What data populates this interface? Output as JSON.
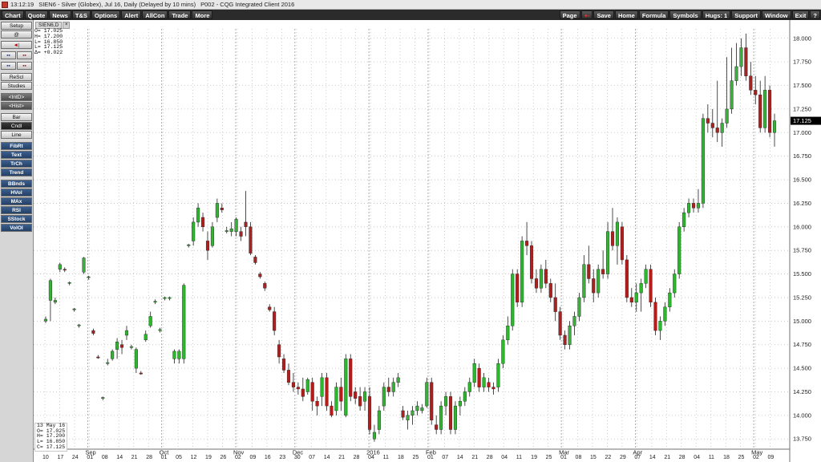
{
  "titlebar": {
    "time": "13:12:19",
    "caption": "SIEN6 - Silver (Globex), Jul 16, Daily (Delayed by 10 mins)",
    "page": "P002 - CQG Integrated Client 2016"
  },
  "menu": {
    "left": [
      "Chart",
      "Quote",
      "News",
      "T&S",
      "Options",
      "Alert",
      "AllCon",
      "Trade",
      "More"
    ],
    "right": [
      "Page",
      "+-",
      "Save",
      "Home",
      "Formula",
      "Symbols",
      "Hugs: 1",
      "Support",
      "Window",
      "Exit",
      "?"
    ]
  },
  "sidebar": {
    "top": [
      "Setup",
      "@",
      "◄|",
      "▪▪",
      "▪▪",
      "ReScl",
      "Studies",
      "<IntD>",
      "<Hist>",
      "Bar",
      "Cndl",
      "Line"
    ],
    "studies": [
      "FibRt",
      "Text",
      "TrCh",
      "Trend",
      "BBnds",
      "HVol",
      "MAx",
      "RSI",
      "SStock",
      "VolOI"
    ]
  },
  "tab": {
    "label": "SIEN6,D",
    "close": "×"
  },
  "ohlc_top": {
    "o": "O= 17.025",
    "h": "H= 17.200",
    "l": "L= 16.850",
    "c": "L= 17.125",
    "d": "Δ= +0.022"
  },
  "ohlc_bottom": {
    "date": "13 May 16",
    "o": "O= 17.025",
    "h": "H= 17.200",
    "l": "L= 16.850",
    "c": "C= 17.125"
  },
  "colors": {
    "up": "#2fb52f",
    "down": "#b51d1d",
    "grid": "#c0c0c0",
    "last_price_bg": "#000000"
  },
  "chart_data": {
    "type": "candlestick",
    "symbol": "SIEN6",
    "ylim": [
      13.65,
      18.1
    ],
    "y_ticks": [
      "13.750",
      "14.000",
      "14.250",
      "14.500",
      "14.750",
      "15.000",
      "15.250",
      "15.500",
      "15.750",
      "16.000",
      "16.250",
      "16.500",
      "16.750",
      "17.000",
      "17.250",
      "17.500",
      "17.750",
      "18.000"
    ],
    "last_price": "17.125",
    "x_labels": [
      "10",
      "17",
      "24",
      "01",
      "08",
      "14",
      "21",
      "28",
      "01",
      "05",
      "12",
      "19",
      "26",
      "02",
      "09",
      "16",
      "23",
      "30",
      "07",
      "14",
      "21",
      "28",
      "04",
      "11",
      "18",
      "25",
      "01",
      "07",
      "14",
      "21",
      "28",
      "04",
      "11",
      "19",
      "25",
      "01",
      "08",
      "15",
      "22",
      "29",
      "07",
      "14",
      "21",
      "28",
      "04",
      "11",
      "18",
      "25",
      "02",
      "09"
    ],
    "months": [
      {
        "label": "Sep",
        "at": 3
      },
      {
        "label": "Oct",
        "at": 8
      },
      {
        "label": "Nov",
        "at": 13
      },
      {
        "label": "Dec",
        "at": 17
      },
      {
        "label": "2016",
        "at": 22
      },
      {
        "label": "Feb",
        "at": 26
      },
      {
        "label": "Mar",
        "at": 35
      },
      {
        "label": "Apr",
        "at": 40
      },
      {
        "label": "May",
        "at": 48
      }
    ],
    "candles": [
      [
        15.0,
        15.05,
        14.98,
        15.02
      ],
      [
        15.22,
        15.45,
        15.0,
        15.43
      ],
      [
        15.2,
        15.25,
        15.18,
        15.22
      ],
      [
        15.55,
        15.62,
        15.52,
        15.6
      ],
      [
        15.55,
        15.57,
        15.52,
        15.54
      ],
      [
        15.4,
        15.42,
        15.38,
        15.41
      ],
      [
        15.12,
        15.14,
        15.1,
        15.13
      ],
      [
        14.95,
        14.97,
        14.93,
        14.96
      ],
      [
        15.52,
        15.68,
        15.5,
        15.67
      ],
      [
        15.46,
        15.48,
        15.44,
        15.47
      ],
      [
        14.9,
        14.92,
        14.85,
        14.87
      ],
      [
        14.62,
        14.64,
        14.6,
        14.61
      ],
      [
        14.18,
        14.2,
        14.16,
        14.19
      ],
      [
        14.55,
        14.6,
        14.53,
        14.56
      ],
      [
        14.6,
        14.7,
        14.58,
        14.68
      ],
      [
        14.7,
        14.82,
        14.6,
        14.78
      ],
      [
        14.75,
        14.8,
        14.65,
        14.72
      ],
      [
        14.85,
        14.95,
        14.8,
        14.9
      ],
      [
        14.72,
        14.75,
        14.7,
        14.73
      ],
      [
        14.5,
        14.72,
        14.45,
        14.7
      ],
      [
        14.45,
        14.47,
        14.43,
        14.44
      ],
      [
        14.8,
        14.9,
        14.78,
        14.86
      ],
      [
        14.95,
        15.1,
        14.93,
        15.05
      ],
      [
        15.2,
        15.23,
        15.18,
        15.21
      ],
      [
        14.9,
        14.93,
        14.88,
        14.91
      ],
      [
        15.24,
        15.26,
        15.22,
        15.25
      ],
      [
        15.24,
        15.26,
        15.22,
        15.25
      ],
      [
        14.6,
        14.7,
        14.55,
        14.68
      ],
      [
        14.6,
        14.7,
        14.55,
        14.68
      ],
      [
        14.6,
        15.4,
        14.55,
        15.38
      ],
      [
        15.8,
        15.82,
        15.78,
        15.81
      ],
      [
        15.85,
        16.1,
        15.8,
        16.05
      ],
      [
        16.05,
        16.25,
        16.0,
        16.2
      ],
      [
        16.1,
        16.15,
        15.95,
        16.0
      ],
      [
        15.85,
        15.95,
        15.65,
        15.75
      ],
      [
        15.8,
        16.05,
        15.78,
        16.0
      ],
      [
        16.1,
        16.3,
        16.05,
        16.25
      ],
      [
        16.2,
        16.25,
        16.15,
        16.18
      ],
      [
        15.95,
        16.0,
        15.93,
        15.96
      ],
      [
        15.95,
        16.05,
        15.9,
        15.98
      ],
      [
        15.95,
        16.1,
        15.9,
        16.08
      ],
      [
        15.95,
        16.0,
        15.85,
        15.9
      ],
      [
        16.05,
        16.38,
        15.9,
        16.0
      ],
      [
        16.0,
        16.05,
        15.7,
        15.72
      ],
      [
        15.68,
        15.7,
        15.6,
        15.62
      ],
      [
        15.5,
        15.52,
        15.45,
        15.47
      ],
      [
        15.4,
        15.42,
        15.32,
        15.35
      ],
      [
        15.15,
        15.18,
        15.1,
        15.12
      ],
      [
        15.1,
        15.15,
        14.85,
        14.9
      ],
      [
        14.75,
        14.8,
        14.55,
        14.62
      ],
      [
        14.6,
        14.65,
        14.45,
        14.48
      ],
      [
        14.48,
        14.55,
        14.32,
        14.35
      ],
      [
        14.35,
        14.45,
        14.25,
        14.3
      ],
      [
        14.3,
        14.35,
        14.22,
        14.28
      ],
      [
        14.28,
        14.4,
        14.15,
        14.2
      ],
      [
        14.25,
        14.4,
        14.22,
        14.38
      ],
      [
        14.35,
        14.4,
        14.05,
        14.15
      ],
      [
        14.15,
        14.2,
        14.0,
        14.1
      ],
      [
        14.2,
        14.45,
        14.1,
        14.4
      ],
      [
        14.4,
        14.45,
        14.05,
        14.1
      ],
      [
        14.1,
        14.15,
        13.98,
        14.0
      ],
      [
        14.05,
        14.35,
        14.0,
        14.3
      ],
      [
        14.3,
        14.4,
        14.05,
        14.15
      ],
      [
        14.0,
        14.65,
        13.98,
        14.6
      ],
      [
        14.6,
        14.65,
        14.15,
        14.2
      ],
      [
        14.25,
        14.3,
        14.12,
        14.18
      ],
      [
        14.2,
        14.3,
        14.05,
        14.1
      ],
      [
        14.15,
        14.3,
        14.05,
        14.25
      ],
      [
        14.2,
        14.3,
        13.8,
        13.85
      ],
      [
        13.75,
        13.9,
        13.72,
        13.82
      ],
      [
        13.85,
        14.1,
        13.8,
        14.05
      ],
      [
        14.1,
        14.35,
        14.05,
        14.3
      ],
      [
        14.3,
        14.4,
        14.2,
        14.25
      ],
      [
        14.25,
        14.4,
        14.2,
        14.35
      ],
      [
        14.35,
        14.45,
        14.3,
        14.4
      ],
      [
        14.05,
        14.1,
        13.95,
        13.98
      ],
      [
        13.95,
        14.05,
        13.85,
        14.0
      ],
      [
        14.0,
        14.1,
        13.9,
        14.05
      ],
      [
        14.05,
        14.15,
        14.0,
        14.1
      ],
      [
        14.05,
        14.12,
        14.02,
        14.08
      ],
      [
        14.1,
        14.4,
        14.08,
        14.35
      ],
      [
        14.35,
        14.4,
        13.9,
        13.95
      ],
      [
        13.9,
        14.0,
        13.8,
        13.85
      ],
      [
        13.85,
        14.15,
        13.8,
        14.1
      ],
      [
        14.1,
        14.25,
        14.0,
        14.2
      ],
      [
        14.2,
        14.25,
        13.8,
        13.85
      ],
      [
        13.85,
        14.15,
        13.8,
        14.1
      ],
      [
        14.1,
        14.2,
        14.0,
        14.15
      ],
      [
        14.15,
        14.3,
        14.1,
        14.25
      ],
      [
        14.25,
        14.4,
        14.2,
        14.35
      ],
      [
        14.35,
        14.6,
        14.3,
        14.55
      ],
      [
        14.5,
        14.55,
        14.25,
        14.3
      ],
      [
        14.3,
        14.45,
        14.25,
        14.4
      ],
      [
        14.35,
        14.4,
        14.25,
        14.3
      ],
      [
        14.3,
        14.35,
        14.22,
        14.28
      ],
      [
        14.3,
        14.6,
        14.25,
        14.55
      ],
      [
        14.55,
        14.85,
        14.5,
        14.8
      ],
      [
        14.8,
        15.05,
        14.75,
        14.95
      ],
      [
        14.95,
        15.55,
        14.9,
        15.5
      ],
      [
        15.5,
        15.55,
        15.15,
        15.2
      ],
      [
        15.2,
        15.9,
        15.15,
        15.85
      ],
      [
        15.85,
        16.05,
        15.7,
        15.8
      ],
      [
        15.8,
        15.85,
        15.4,
        15.45
      ],
      [
        15.45,
        15.55,
        15.3,
        15.35
      ],
      [
        15.35,
        15.6,
        15.3,
        15.55
      ],
      [
        15.55,
        15.65,
        15.35,
        15.4
      ],
      [
        15.4,
        15.45,
        15.2,
        15.25
      ],
      [
        15.25,
        15.4,
        15.0,
        15.1
      ],
      [
        15.1,
        15.15,
        14.8,
        14.85
      ],
      [
        14.85,
        14.9,
        14.7,
        14.75
      ],
      [
        14.75,
        15.0,
        14.7,
        14.95
      ],
      [
        14.95,
        15.1,
        14.85,
        15.05
      ],
      [
        15.05,
        15.3,
        15.0,
        15.25
      ],
      [
        15.25,
        15.7,
        15.2,
        15.6
      ],
      [
        15.6,
        15.8,
        15.4,
        15.45
      ],
      [
        15.45,
        15.55,
        15.2,
        15.3
      ],
      [
        15.3,
        15.6,
        15.25,
        15.55
      ],
      [
        15.55,
        15.75,
        15.45,
        15.5
      ],
      [
        15.5,
        16.05,
        15.45,
        15.95
      ],
      [
        15.95,
        16.2,
        15.75,
        15.8
      ],
      [
        15.8,
        16.1,
        15.6,
        16.05
      ],
      [
        16.0,
        16.05,
        15.6,
        15.65
      ],
      [
        15.65,
        15.7,
        15.2,
        15.25
      ],
      [
        15.25,
        15.35,
        15.15,
        15.2
      ],
      [
        15.2,
        15.4,
        15.1,
        15.3
      ],
      [
        15.3,
        15.45,
        15.1,
        15.4
      ],
      [
        15.4,
        15.6,
        15.35,
        15.55
      ],
      [
        15.55,
        15.6,
        15.15,
        15.2
      ],
      [
        15.2,
        15.25,
        14.85,
        14.9
      ],
      [
        14.9,
        15.05,
        14.8,
        15.0
      ],
      [
        15.0,
        15.2,
        14.95,
        15.15
      ],
      [
        15.15,
        15.35,
        15.1,
        15.3
      ],
      [
        15.3,
        15.55,
        15.25,
        15.5
      ],
      [
        15.5,
        16.05,
        15.45,
        16.0
      ],
      [
        16.0,
        16.2,
        15.95,
        16.15
      ],
      [
        16.15,
        16.3,
        16.1,
        16.25
      ],
      [
        16.25,
        16.3,
        16.15,
        16.2
      ],
      [
        16.2,
        16.4,
        16.15,
        16.25
      ],
      [
        16.25,
        17.2,
        16.2,
        17.15
      ],
      [
        17.15,
        17.3,
        17.0,
        17.1
      ],
      [
        17.1,
        17.25,
        16.95,
        17.05
      ],
      [
        17.05,
        17.55,
        16.9,
        17.0
      ],
      [
        17.0,
        17.15,
        16.85,
        17.1
      ],
      [
        17.1,
        17.8,
        17.05,
        17.25
      ],
      [
        17.25,
        17.9,
        17.2,
        17.55
      ],
      [
        17.55,
        17.95,
        17.5,
        17.7
      ],
      [
        17.7,
        18.0,
        17.6,
        17.9
      ],
      [
        17.9,
        18.05,
        17.55,
        17.6
      ],
      [
        17.6,
        17.75,
        17.4,
        17.45
      ],
      [
        17.45,
        17.6,
        17.3,
        17.4
      ],
      [
        17.4,
        17.55,
        17.0,
        17.05
      ],
      [
        17.05,
        17.6,
        17.0,
        17.45
      ],
      [
        17.45,
        17.5,
        16.95,
        17.0
      ],
      [
        17.0,
        17.2,
        16.85,
        17.125
      ]
    ]
  }
}
